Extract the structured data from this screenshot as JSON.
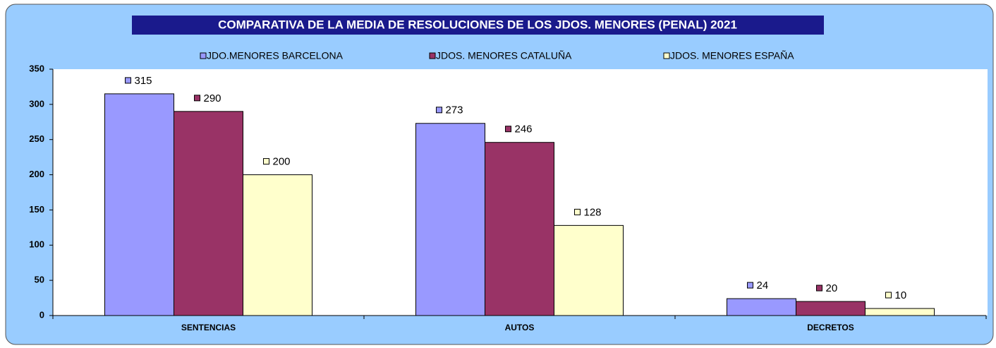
{
  "chart_data": {
    "type": "bar",
    "title": "COMPARATIVA DE LA MEDIA DE RESOLUCIONES  DE LOS JDOS. MENORES (PENAL)  2021",
    "categories": [
      "SENTENCIAS",
      "AUTOS",
      "DECRETOS"
    ],
    "series": [
      {
        "name": "JDO.MENORES BARCELONA",
        "color": "#9999ff",
        "values": [
          315,
          273,
          24
        ]
      },
      {
        "name": "JDOS. MENORES CATALUÑA",
        "color": "#993366",
        "values": [
          290,
          246,
          20
        ]
      },
      {
        "name": "JDOS. MENORES ESPAÑA",
        "color": "#ffffcc",
        "values": [
          200,
          128,
          10
        ]
      }
    ],
    "ylim": [
      0,
      350
    ],
    "yticks": [
      0,
      50,
      100,
      150,
      200,
      250,
      300,
      350
    ],
    "grid": false,
    "legend": "top"
  }
}
